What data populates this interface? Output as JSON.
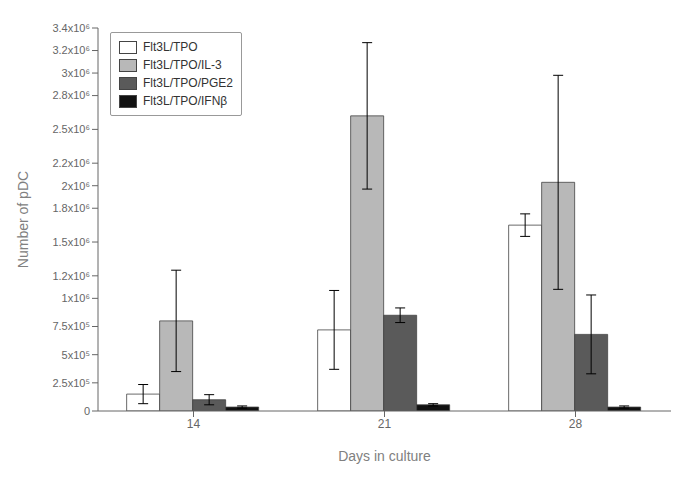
{
  "chart_data": {
    "type": "bar",
    "categories": [
      "14",
      "21",
      "28"
    ],
    "xlabel": "Days in culture",
    "ylabel": "Number of pDC",
    "ylim": [
      0,
      3400000
    ],
    "yticks": [
      0,
      {
        "value": 250000,
        "label": "2.5x10⁵"
      },
      {
        "value": 500000,
        "label": "5x10⁵"
      },
      {
        "value": 750000,
        "label": "7.5x10⁵"
      },
      {
        "value": 1000000,
        "label": "1x10⁶"
      },
      {
        "value": 1200000,
        "label": "1.2x10⁶"
      },
      {
        "value": 1500000,
        "label": "1.5x10⁶"
      },
      {
        "value": 1800000,
        "label": "1.8x10⁶"
      },
      {
        "value": 2000000,
        "label": "2x10⁶"
      },
      {
        "value": 2200000,
        "label": "2.2x10⁶"
      },
      {
        "value": 2500000,
        "label": "2.5x10⁶"
      },
      {
        "value": 2800000,
        "label": "2.8x10⁶"
      },
      {
        "value": 3000000,
        "label": "3x10⁶"
      },
      {
        "value": 3200000,
        "label": "3.2x10⁶"
      },
      {
        "value": 3400000,
        "label": "3.4x10⁶"
      }
    ],
    "grid": false,
    "legend": "upper left",
    "series": [
      {
        "name": "Flt3L/TPO",
        "color": "#ffffff",
        "values": [
          150000,
          720000,
          1650000
        ],
        "errors": [
          85000,
          350000,
          100000
        ]
      },
      {
        "name": "Flt3L/TPO/IL-3",
        "color": "#b8b8b8",
        "values": [
          800000,
          2620000,
          2030000
        ],
        "errors": [
          450000,
          650000,
          950000
        ]
      },
      {
        "name": "Flt3L/TPO/PGE2",
        "color": "#5a5a5a",
        "values": [
          100000,
          850000,
          680000
        ],
        "errors": [
          45000,
          65000,
          350000
        ]
      },
      {
        "name": "Flt3L/TPO/IFNβ",
        "color": "#111111",
        "values": [
          35000,
          55000,
          35000
        ],
        "errors": [
          10000,
          10000,
          10000
        ]
      }
    ]
  }
}
